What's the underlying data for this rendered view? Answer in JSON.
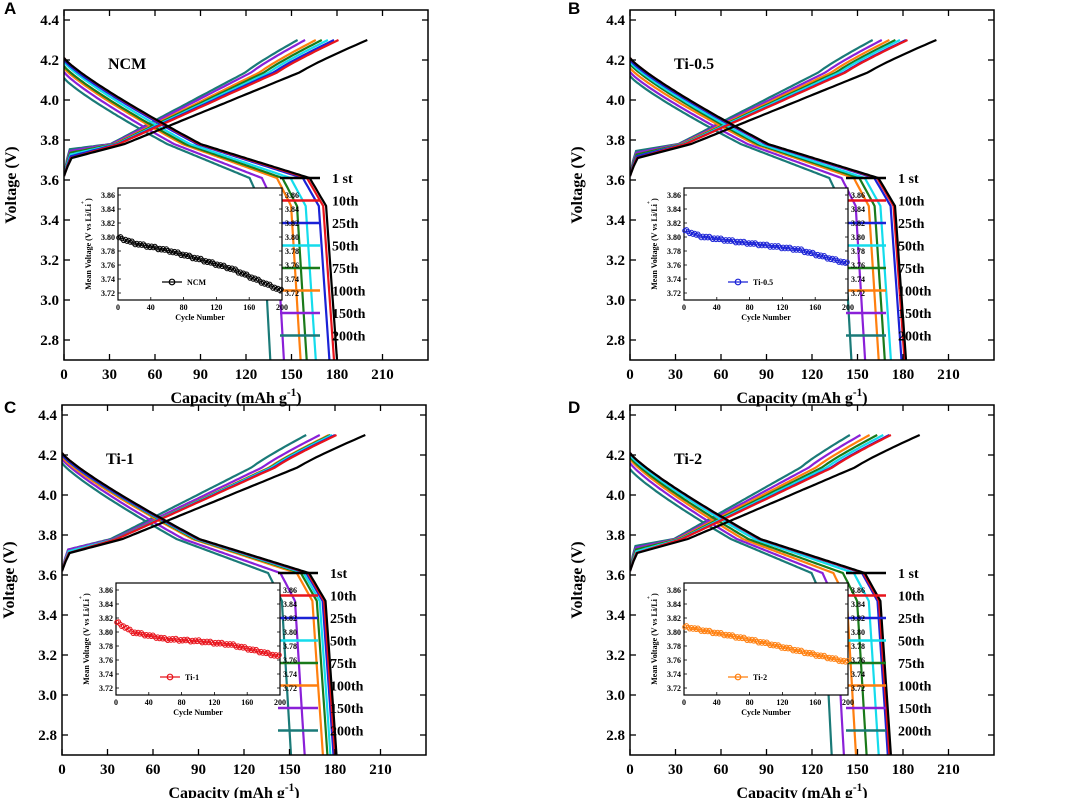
{
  "figure": {
    "panel_letters": [
      "A",
      "B",
      "C",
      "D"
    ]
  },
  "chart_data": [
    {
      "panel": "A",
      "type": "line",
      "title": "NCM",
      "xlabel": "Capacity (mAh g",
      "xlabel_sup": "-1",
      "xlabel_end": ")",
      "ylabel": "Voltage (V)",
      "xlim": [
        0,
        240
      ],
      "ylim": [
        2.7,
        4.45
      ],
      "xticks": [
        "0",
        "30",
        "60",
        "90",
        "120",
        "150",
        "180",
        "210"
      ],
      "yticks": [
        "2.8",
        "3.0",
        "3.2",
        "3.4",
        "3.6",
        "3.8",
        "4.0",
        "4.2",
        "4.4"
      ],
      "legend": [
        {
          "label": "1 st",
          "color": "#000000"
        },
        {
          "label": "10th",
          "color": "#e8141c"
        },
        {
          "label": "25th",
          "color": "#1a22d6"
        },
        {
          "label": "50th",
          "color": "#14dcec"
        },
        {
          "label": "75th",
          "color": "#1a7a1a"
        },
        {
          "label": "100th",
          "color": "#ff7f0e"
        },
        {
          "label": "150th",
          "color": "#8a20d8"
        },
        {
          "label": "200th",
          "color": "#1a7a78"
        }
      ],
      "charge_capacity": [
        200,
        181,
        178,
        174,
        170,
        166,
        159,
        154
      ],
      "charge_start_v": [
        3.7,
        3.7,
        3.71,
        3.72,
        3.73,
        3.73,
        3.74,
        3.75
      ],
      "discharge_capacity": [
        180,
        178,
        175,
        166,
        160,
        156,
        145,
        136
      ],
      "discharge_start_v": [
        4.21,
        4.21,
        4.2,
        4.19,
        4.17,
        4.16,
        4.14,
        4.11
      ],
      "inset": {
        "xlabel": "Cycle Number",
        "ylabel": "Mean Voltage (V vs Li/Li",
        "ylabel_sup": "+",
        "ylabel_end": ")",
        "xlim": [
          0,
          200
        ],
        "ylim": [
          3.71,
          3.87
        ],
        "xticks": [
          "0",
          "40",
          "80",
          "120",
          "160",
          "200"
        ],
        "yticks": [
          "3.72",
          "3.74",
          "3.76",
          "3.78",
          "3.80",
          "3.82",
          "3.84",
          "3.86"
        ],
        "legend": "NCM",
        "color": "#000000",
        "mean_voltage": {
          "start": 3.8,
          "points": [
            [
              0,
              3.8
            ],
            [
              20,
              3.791
            ],
            [
              60,
              3.781
            ],
            [
              100,
              3.768
            ],
            [
              140,
              3.754
            ],
            [
              200,
              3.723
            ]
          ]
        }
      }
    },
    {
      "panel": "B",
      "type": "line",
      "title": "Ti-0.5",
      "xlabel": "Capacity (mAh g",
      "xlabel_sup": "-1",
      "xlabel_end": ")",
      "ylabel": "Voltage (V)",
      "xlim": [
        0,
        240
      ],
      "ylim": [
        2.7,
        4.45
      ],
      "xticks": [
        "0",
        "30",
        "60",
        "90",
        "120",
        "150",
        "180",
        "210"
      ],
      "yticks": [
        "2.8",
        "3.0",
        "3.2",
        "3.4",
        "3.6",
        "3.8",
        "4.0",
        "4.2",
        "4.4"
      ],
      "legend": [
        {
          "label": "1 st",
          "color": "#000000"
        },
        {
          "label": "10th",
          "color": "#e8141c"
        },
        {
          "label": "25th",
          "color": "#1a22d6"
        },
        {
          "label": "50th",
          "color": "#14dcec"
        },
        {
          "label": "75th",
          "color": "#1a7a1a"
        },
        {
          "label": "100th",
          "color": "#ff7f0e"
        },
        {
          "label": "150th",
          "color": "#8a20d8"
        },
        {
          "label": "200th",
          "color": "#1a7a78"
        }
      ],
      "charge_capacity": [
        202,
        183,
        182,
        178,
        175,
        171,
        166,
        160
      ],
      "charge_start_v": [
        3.7,
        3.7,
        3.71,
        3.71,
        3.72,
        3.72,
        3.73,
        3.74
      ],
      "discharge_capacity": [
        182,
        181,
        179,
        172,
        168,
        164,
        155,
        146
      ],
      "discharge_start_v": [
        4.21,
        4.21,
        4.2,
        4.19,
        4.18,
        4.16,
        4.14,
        4.12
      ],
      "inset": {
        "xlabel": "Cycle Number",
        "ylabel": "Mean Voltage (V vs Li/Li",
        "ylabel_sup": "+",
        "ylabel_end": ")",
        "xlim": [
          0,
          200
        ],
        "ylim": [
          3.71,
          3.87
        ],
        "xticks": [
          "0",
          "40",
          "80",
          "120",
          "160",
          "200"
        ],
        "yticks": [
          "3.72",
          "3.74",
          "3.76",
          "3.78",
          "3.80",
          "3.82",
          "3.84",
          "3.86"
        ],
        "legend": "Ti-0.5",
        "color": "#1a22d6",
        "mean_voltage": {
          "start": 3.81,
          "points": [
            [
              0,
              3.81
            ],
            [
              20,
              3.801
            ],
            [
              60,
              3.794
            ],
            [
              100,
              3.788
            ],
            [
              140,
              3.782
            ],
            [
              200,
              3.762
            ]
          ]
        }
      }
    },
    {
      "panel": "C",
      "type": "line",
      "title": "Ti-1",
      "xlabel": "Capacity (mAh g",
      "xlabel_sup": "-1",
      "xlabel_end": ")",
      "ylabel": "Voltage (V)",
      "xlim": [
        0,
        240
      ],
      "ylim": [
        2.7,
        4.45
      ],
      "xticks": [
        "0",
        "30",
        "60",
        "90",
        "120",
        "150",
        "180",
        "210"
      ],
      "yticks": [
        "2.8",
        "3.0",
        "3.2",
        "3.4",
        "3.6",
        "3.8",
        "4.0",
        "4.2",
        "4.4"
      ],
      "legend": [
        {
          "label": "1st",
          "color": "#000000"
        },
        {
          "label": "10th",
          "color": "#e8141c"
        },
        {
          "label": "25th",
          "color": "#1a22d6"
        },
        {
          "label": "50th",
          "color": "#14dcec"
        },
        {
          "label": "75th",
          "color": "#1a7a1a"
        },
        {
          "label": "100th",
          "color": "#ff7f0e"
        },
        {
          "label": "150th",
          "color": "#8a20d8"
        },
        {
          "label": "200th",
          "color": "#1a7a78"
        }
      ],
      "charge_capacity": [
        200,
        181,
        180,
        178,
        177,
        176,
        170,
        161
      ],
      "charge_start_v": [
        3.7,
        3.7,
        3.7,
        3.71,
        3.71,
        3.71,
        3.72,
        3.72
      ],
      "discharge_capacity": [
        181,
        180,
        179,
        177,
        175,
        172,
        160,
        151
      ],
      "discharge_start_v": [
        4.21,
        4.21,
        4.2,
        4.2,
        4.2,
        4.19,
        4.18,
        4.16
      ],
      "inset": {
        "xlabel": "Cycle Number",
        "ylabel": "Mean Voltage (V vs Li/Li",
        "ylabel_sup": "+",
        "ylabel_end": ")",
        "xlim": [
          0,
          200
        ],
        "ylim": [
          3.71,
          3.87
        ],
        "xticks": [
          "0",
          "40",
          "80",
          "120",
          "160",
          "200"
        ],
        "yticks": [
          "3.72",
          "3.74",
          "3.76",
          "3.78",
          "3.80",
          "3.82",
          "3.84",
          "3.86"
        ],
        "legend": "Ti-1",
        "color": "#e8141c",
        "mean_voltage": {
          "start": 3.815,
          "points": [
            [
              0,
              3.815
            ],
            [
              20,
              3.8
            ],
            [
              60,
              3.79
            ],
            [
              100,
              3.787
            ],
            [
              140,
              3.782
            ],
            [
              200,
              3.765
            ]
          ]
        }
      }
    },
    {
      "panel": "D",
      "type": "line",
      "title": "Ti-2",
      "xlabel": "Capacity (mAh g",
      "xlabel_sup": "-1",
      "xlabel_end": ")",
      "ylabel": "Voltage (V)",
      "xlim": [
        0,
        240
      ],
      "ylim": [
        2.7,
        4.45
      ],
      "xticks": [
        "0",
        "30",
        "60",
        "90",
        "120",
        "150",
        "180",
        "210"
      ],
      "yticks": [
        "2.8",
        "3.0",
        "3.2",
        "3.4",
        "3.6",
        "3.8",
        "4.0",
        "4.2",
        "4.4"
      ],
      "legend": [
        {
          "label": "1 st",
          "color": "#000000"
        },
        {
          "label": "10th",
          "color": "#e8141c"
        },
        {
          "label": "25th",
          "color": "#1a22d6"
        },
        {
          "label": "50th",
          "color": "#14dcec"
        },
        {
          "label": "75th",
          "color": "#1a7a1a"
        },
        {
          "label": "100th",
          "color": "#ff7f0e"
        },
        {
          "label": "150th",
          "color": "#8a20d8"
        },
        {
          "label": "200th",
          "color": "#1a7a78"
        }
      ],
      "charge_capacity": [
        191,
        172,
        171,
        167,
        163,
        158,
        152,
        145
      ],
      "charge_start_v": [
        3.7,
        3.7,
        3.7,
        3.71,
        3.72,
        3.72,
        3.73,
        3.74
      ],
      "discharge_capacity": [
        172,
        171,
        170,
        164,
        156,
        149,
        141,
        133
      ],
      "discharge_start_v": [
        4.21,
        4.21,
        4.21,
        4.2,
        4.19,
        4.18,
        4.16,
        4.13
      ],
      "inset": {
        "xlabel": "Cycle Number",
        "ylabel": "Mean Voltage (V vs Li/Li",
        "ylabel_sup": "+",
        "ylabel_end": ")",
        "xlim": [
          0,
          200
        ],
        "ylim": [
          3.71,
          3.87
        ],
        "xticks": [
          "0",
          "40",
          "80",
          "120",
          "160",
          "200"
        ],
        "yticks": [
          "3.72",
          "3.74",
          "3.76",
          "3.78",
          "3.80",
          "3.82",
          "3.84",
          "3.86"
        ],
        "legend": "Ti-2",
        "color": "#ff7f0e",
        "mean_voltage": {
          "start": 3.808,
          "points": [
            [
              0,
              3.808
            ],
            [
              20,
              3.803
            ],
            [
              60,
              3.794
            ],
            [
              100,
              3.784
            ],
            [
              140,
              3.773
            ],
            [
              200,
              3.757
            ]
          ]
        }
      }
    }
  ]
}
